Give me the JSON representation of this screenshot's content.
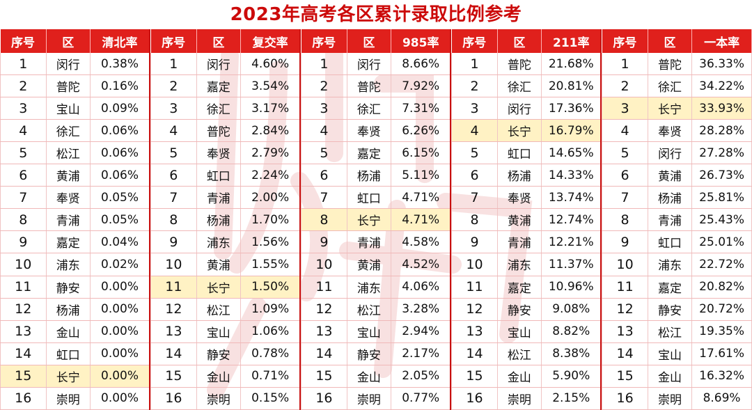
{
  "title": "2023年高考各区累计录取比例参考",
  "columns": {
    "index": "序号",
    "district": "区"
  },
  "blocks": [
    {
      "rate_header": "清北率",
      "rows": [
        {
          "idx": "1",
          "district": "闵行",
          "rate": "0.38%"
        },
        {
          "idx": "2",
          "district": "普陀",
          "rate": "0.16%"
        },
        {
          "idx": "3",
          "district": "宝山",
          "rate": "0.09%"
        },
        {
          "idx": "4",
          "district": "徐汇",
          "rate": "0.06%"
        },
        {
          "idx": "5",
          "district": "松江",
          "rate": "0.06%"
        },
        {
          "idx": "6",
          "district": "黄浦",
          "rate": "0.06%"
        },
        {
          "idx": "7",
          "district": "奉贤",
          "rate": "0.05%"
        },
        {
          "idx": "8",
          "district": "青浦",
          "rate": "0.05%"
        },
        {
          "idx": "9",
          "district": "嘉定",
          "rate": "0.04%"
        },
        {
          "idx": "10",
          "district": "浦东",
          "rate": "0.02%"
        },
        {
          "idx": "11",
          "district": "静安",
          "rate": "0.00%"
        },
        {
          "idx": "12",
          "district": "杨浦",
          "rate": "0.00%"
        },
        {
          "idx": "13",
          "district": "金山",
          "rate": "0.00%"
        },
        {
          "idx": "14",
          "district": "虹口",
          "rate": "0.00%"
        },
        {
          "idx": "15",
          "district": "长宁",
          "rate": "0.00%",
          "highlight": true
        },
        {
          "idx": "16",
          "district": "崇明",
          "rate": "0.00%"
        }
      ]
    },
    {
      "rate_header": "复交率",
      "rows": [
        {
          "idx": "1",
          "district": "闵行",
          "rate": "4.60%"
        },
        {
          "idx": "2",
          "district": "嘉定",
          "rate": "3.54%"
        },
        {
          "idx": "3",
          "district": "徐汇",
          "rate": "3.17%"
        },
        {
          "idx": "4",
          "district": "普陀",
          "rate": "2.84%"
        },
        {
          "idx": "5",
          "district": "奉贤",
          "rate": "2.79%"
        },
        {
          "idx": "6",
          "district": "虹口",
          "rate": "2.24%"
        },
        {
          "idx": "7",
          "district": "青浦",
          "rate": "2.00%"
        },
        {
          "idx": "8",
          "district": "杨浦",
          "rate": "1.70%"
        },
        {
          "idx": "9",
          "district": "浦东",
          "rate": "1.56%"
        },
        {
          "idx": "10",
          "district": "黄浦",
          "rate": "1.55%"
        },
        {
          "idx": "11",
          "district": "长宁",
          "rate": "1.50%",
          "highlight": true
        },
        {
          "idx": "12",
          "district": "松江",
          "rate": "1.09%"
        },
        {
          "idx": "13",
          "district": "宝山",
          "rate": "1.06%"
        },
        {
          "idx": "14",
          "district": "静安",
          "rate": "0.78%"
        },
        {
          "idx": "15",
          "district": "金山",
          "rate": "0.71%"
        },
        {
          "idx": "16",
          "district": "崇明",
          "rate": "0.15%"
        }
      ]
    },
    {
      "rate_header": "985率",
      "rows": [
        {
          "idx": "1",
          "district": "闵行",
          "rate": "8.66%"
        },
        {
          "idx": "2",
          "district": "普陀",
          "rate": "7.92%"
        },
        {
          "idx": "3",
          "district": "徐汇",
          "rate": "7.31%"
        },
        {
          "idx": "4",
          "district": "奉贤",
          "rate": "6.26%"
        },
        {
          "idx": "5",
          "district": "嘉定",
          "rate": "6.15%"
        },
        {
          "idx": "6",
          "district": "杨浦",
          "rate": "5.11%"
        },
        {
          "idx": "7",
          "district": "虹口",
          "rate": "4.71%"
        },
        {
          "idx": "8",
          "district": "长宁",
          "rate": "4.71%",
          "highlight": true
        },
        {
          "idx": "9",
          "district": "青浦",
          "rate": "4.58%"
        },
        {
          "idx": "10",
          "district": "黄浦",
          "rate": "4.52%"
        },
        {
          "idx": "11",
          "district": "浦东",
          "rate": "4.06%"
        },
        {
          "idx": "12",
          "district": "松江",
          "rate": "3.28%"
        },
        {
          "idx": "13",
          "district": "宝山",
          "rate": "2.94%"
        },
        {
          "idx": "14",
          "district": "静安",
          "rate": "2.17%"
        },
        {
          "idx": "15",
          "district": "金山",
          "rate": "2.05%"
        },
        {
          "idx": "16",
          "district": "崇明",
          "rate": "0.77%"
        }
      ]
    },
    {
      "rate_header": "211率",
      "rows": [
        {
          "idx": "1",
          "district": "普陀",
          "rate": "21.68%"
        },
        {
          "idx": "2",
          "district": "徐汇",
          "rate": "20.81%"
        },
        {
          "idx": "3",
          "district": "闵行",
          "rate": "17.36%"
        },
        {
          "idx": "4",
          "district": "长宁",
          "rate": "16.79%",
          "highlight": true
        },
        {
          "idx": "5",
          "district": "虹口",
          "rate": "14.65%"
        },
        {
          "idx": "6",
          "district": "杨浦",
          "rate": "14.33%"
        },
        {
          "idx": "7",
          "district": "奉贤",
          "rate": "13.74%"
        },
        {
          "idx": "8",
          "district": "黄浦",
          "rate": "12.74%"
        },
        {
          "idx": "9",
          "district": "青浦",
          "rate": "12.21%"
        },
        {
          "idx": "10",
          "district": "浦东",
          "rate": "11.37%"
        },
        {
          "idx": "11",
          "district": "嘉定",
          "rate": "10.96%"
        },
        {
          "idx": "12",
          "district": "静安",
          "rate": "9.08%"
        },
        {
          "idx": "13",
          "district": "宝山",
          "rate": "8.82%"
        },
        {
          "idx": "14",
          "district": "松江",
          "rate": "8.38%"
        },
        {
          "idx": "15",
          "district": "金山",
          "rate": "5.90%"
        },
        {
          "idx": "16",
          "district": "崇明",
          "rate": "2.15%"
        }
      ]
    },
    {
      "rate_header": "一本率",
      "rows": [
        {
          "idx": "1",
          "district": "普陀",
          "rate": "36.33%"
        },
        {
          "idx": "2",
          "district": "徐汇",
          "rate": "34.22%"
        },
        {
          "idx": "3",
          "district": "长宁",
          "rate": "33.93%",
          "highlight": true
        },
        {
          "idx": "4",
          "district": "奉贤",
          "rate": "28.28%"
        },
        {
          "idx": "5",
          "district": "闵行",
          "rate": "27.28%"
        },
        {
          "idx": "6",
          "district": "黄浦",
          "rate": "26.73%"
        },
        {
          "idx": "7",
          "district": "杨浦",
          "rate": "25.81%"
        },
        {
          "idx": "8",
          "district": "青浦",
          "rate": "25.43%"
        },
        {
          "idx": "9",
          "district": "虹口",
          "rate": "25.01%"
        },
        {
          "idx": "10",
          "district": "浦东",
          "rate": "22.72%"
        },
        {
          "idx": "11",
          "district": "嘉定",
          "rate": "20.82%"
        },
        {
          "idx": "12",
          "district": "静安",
          "rate": "20.72%"
        },
        {
          "idx": "13",
          "district": "松江",
          "rate": "19.35%"
        },
        {
          "idx": "14",
          "district": "宝山",
          "rate": "17.61%"
        },
        {
          "idx": "15",
          "district": "金山",
          "rate": "16.32%"
        },
        {
          "idx": "16",
          "district": "崇明",
          "rate": "8.69%"
        }
      ]
    }
  ],
  "colors": {
    "title": "#cc0a0a",
    "header_bg": "#e0201c",
    "highlight_bg": "#fff2c4",
    "watermark": "#c81010"
  },
  "watermark_icon": "faint-calligraphy-watermark"
}
